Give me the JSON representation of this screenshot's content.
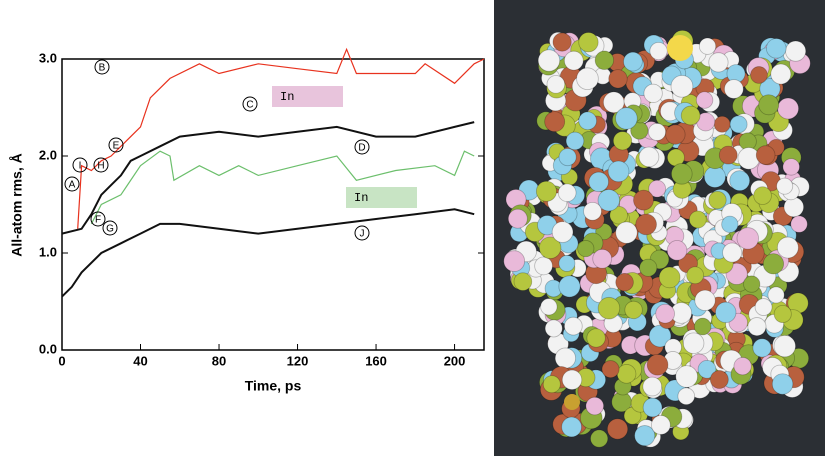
{
  "chart_data": {
    "type": "line",
    "xlabel": "Time, ps",
    "ylabel": "All-atom rms, Å",
    "xlim": [
      0,
      215
    ],
    "ylim": [
      0,
      3.0
    ],
    "xticks": [
      0,
      40,
      80,
      120,
      160,
      200
    ],
    "yticks": [
      {
        "value": 0,
        "label": "0.0"
      },
      {
        "value": 1,
        "label": "1.0"
      },
      {
        "value": 2,
        "label": "2.0"
      },
      {
        "value": 3,
        "label": "3.0"
      }
    ],
    "annotations": [
      "A",
      "B",
      "C",
      "D",
      "E",
      "F",
      "G",
      "H",
      "I",
      "J"
    ],
    "box_labels": [
      {
        "text": "In",
        "color": "#e8c4dc"
      },
      {
        "text": "In",
        "color": "#c8e4c4"
      }
    ],
    "series": [
      {
        "color": "#e8321e",
        "x": [
          8,
          10,
          15,
          20,
          25,
          30,
          40,
          45,
          55,
          70,
          80,
          100,
          120,
          140,
          145,
          150,
          180,
          185,
          200,
          210,
          215
        ],
        "values": [
          1.25,
          1.9,
          1.85,
          1.95,
          2.0,
          2.1,
          2.3,
          2.6,
          2.8,
          2.95,
          2.85,
          2.95,
          2.9,
          2.85,
          3.1,
          2.85,
          2.85,
          2.95,
          2.75,
          2.95,
          3.0
        ]
      },
      {
        "color": "#111111",
        "x": [
          0,
          10,
          15,
          20,
          25,
          30,
          35,
          40,
          50,
          60,
          80,
          100,
          120,
          140,
          160,
          180,
          200,
          210
        ],
        "values": [
          1.2,
          1.25,
          1.4,
          1.6,
          1.7,
          1.8,
          1.95,
          2.0,
          2.1,
          2.2,
          2.25,
          2.2,
          2.25,
          2.3,
          2.2,
          2.2,
          2.3,
          2.35
        ]
      },
      {
        "color": "#6cbf6c",
        "x": [
          15,
          20,
          30,
          40,
          50,
          55,
          57,
          70,
          80,
          90,
          100,
          120,
          140,
          150,
          170,
          190,
          200,
          205,
          210
        ],
        "values": [
          1.3,
          1.5,
          1.6,
          1.9,
          2.05,
          2.0,
          1.75,
          1.9,
          1.8,
          1.9,
          1.8,
          1.9,
          2.0,
          1.75,
          1.85,
          1.9,
          1.8,
          2.05,
          2.0
        ]
      },
      {
        "color": "#111111",
        "x": [
          0,
          5,
          10,
          20,
          30,
          40,
          50,
          60,
          80,
          100,
          120,
          140,
          160,
          180,
          200,
          210
        ],
        "values": [
          0.55,
          0.65,
          0.8,
          1.0,
          1.1,
          1.2,
          1.3,
          1.3,
          1.25,
          1.2,
          1.25,
          1.3,
          1.35,
          1.4,
          1.45,
          1.4
        ]
      }
    ]
  }
}
